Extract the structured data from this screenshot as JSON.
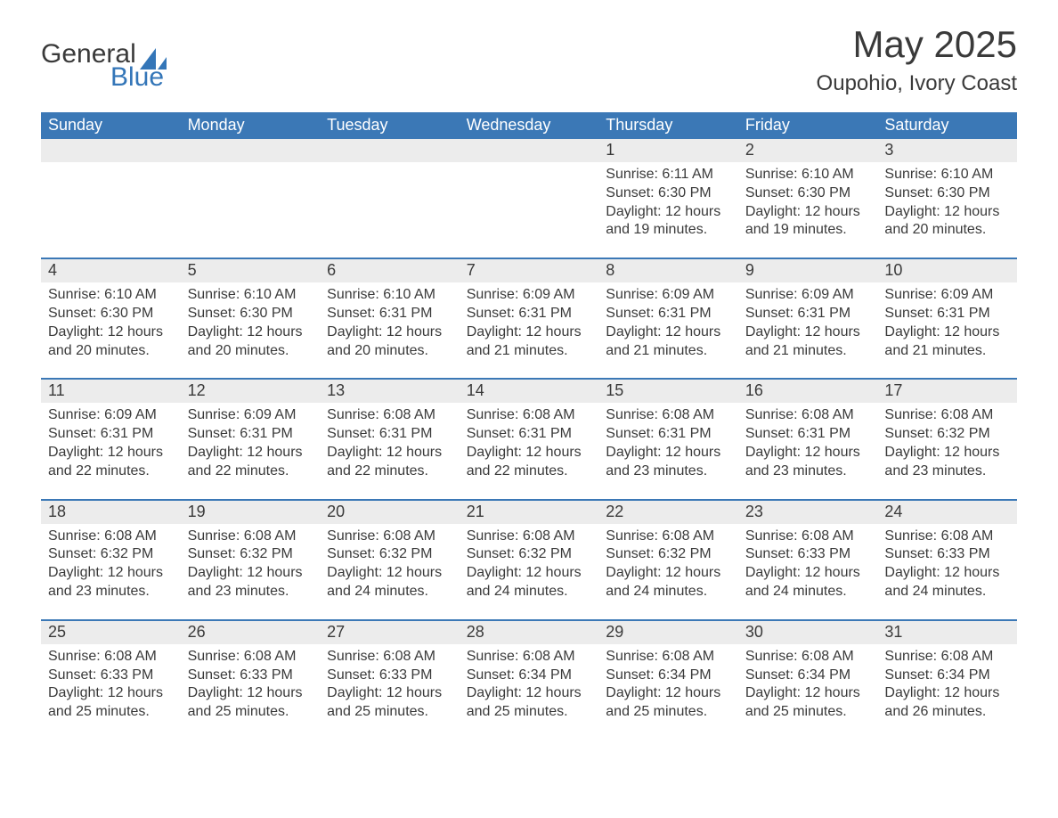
{
  "logo": {
    "word1": "General",
    "word2": "Blue",
    "brand_color": "#3476b8"
  },
  "title": "May 2025",
  "location": "Oupohio, Ivory Coast",
  "header_bg": "#3b78b6",
  "daynum_bg": "#ececec",
  "text_color": "#3a3a3a",
  "day_names": [
    "Sunday",
    "Monday",
    "Tuesday",
    "Wednesday",
    "Thursday",
    "Friday",
    "Saturday"
  ],
  "weeks": [
    [
      {
        "n": "",
        "sr": "",
        "ss": "",
        "dl": ""
      },
      {
        "n": "",
        "sr": "",
        "ss": "",
        "dl": ""
      },
      {
        "n": "",
        "sr": "",
        "ss": "",
        "dl": ""
      },
      {
        "n": "",
        "sr": "",
        "ss": "",
        "dl": ""
      },
      {
        "n": "1",
        "sr": "6:11 AM",
        "ss": "6:30 PM",
        "dl": "12 hours and 19 minutes."
      },
      {
        "n": "2",
        "sr": "6:10 AM",
        "ss": "6:30 PM",
        "dl": "12 hours and 19 minutes."
      },
      {
        "n": "3",
        "sr": "6:10 AM",
        "ss": "6:30 PM",
        "dl": "12 hours and 20 minutes."
      }
    ],
    [
      {
        "n": "4",
        "sr": "6:10 AM",
        "ss": "6:30 PM",
        "dl": "12 hours and 20 minutes."
      },
      {
        "n": "5",
        "sr": "6:10 AM",
        "ss": "6:30 PM",
        "dl": "12 hours and 20 minutes."
      },
      {
        "n": "6",
        "sr": "6:10 AM",
        "ss": "6:31 PM",
        "dl": "12 hours and 20 minutes."
      },
      {
        "n": "7",
        "sr": "6:09 AM",
        "ss": "6:31 PM",
        "dl": "12 hours and 21 minutes."
      },
      {
        "n": "8",
        "sr": "6:09 AM",
        "ss": "6:31 PM",
        "dl": "12 hours and 21 minutes."
      },
      {
        "n": "9",
        "sr": "6:09 AM",
        "ss": "6:31 PM",
        "dl": "12 hours and 21 minutes."
      },
      {
        "n": "10",
        "sr": "6:09 AM",
        "ss": "6:31 PM",
        "dl": "12 hours and 21 minutes."
      }
    ],
    [
      {
        "n": "11",
        "sr": "6:09 AM",
        "ss": "6:31 PM",
        "dl": "12 hours and 22 minutes."
      },
      {
        "n": "12",
        "sr": "6:09 AM",
        "ss": "6:31 PM",
        "dl": "12 hours and 22 minutes."
      },
      {
        "n": "13",
        "sr": "6:08 AM",
        "ss": "6:31 PM",
        "dl": "12 hours and 22 minutes."
      },
      {
        "n": "14",
        "sr": "6:08 AM",
        "ss": "6:31 PM",
        "dl": "12 hours and 22 minutes."
      },
      {
        "n": "15",
        "sr": "6:08 AM",
        "ss": "6:31 PM",
        "dl": "12 hours and 23 minutes."
      },
      {
        "n": "16",
        "sr": "6:08 AM",
        "ss": "6:31 PM",
        "dl": "12 hours and 23 minutes."
      },
      {
        "n": "17",
        "sr": "6:08 AM",
        "ss": "6:32 PM",
        "dl": "12 hours and 23 minutes."
      }
    ],
    [
      {
        "n": "18",
        "sr": "6:08 AM",
        "ss": "6:32 PM",
        "dl": "12 hours and 23 minutes."
      },
      {
        "n": "19",
        "sr": "6:08 AM",
        "ss": "6:32 PM",
        "dl": "12 hours and 23 minutes."
      },
      {
        "n": "20",
        "sr": "6:08 AM",
        "ss": "6:32 PM",
        "dl": "12 hours and 24 minutes."
      },
      {
        "n": "21",
        "sr": "6:08 AM",
        "ss": "6:32 PM",
        "dl": "12 hours and 24 minutes."
      },
      {
        "n": "22",
        "sr": "6:08 AM",
        "ss": "6:32 PM",
        "dl": "12 hours and 24 minutes."
      },
      {
        "n": "23",
        "sr": "6:08 AM",
        "ss": "6:33 PM",
        "dl": "12 hours and 24 minutes."
      },
      {
        "n": "24",
        "sr": "6:08 AM",
        "ss": "6:33 PM",
        "dl": "12 hours and 24 minutes."
      }
    ],
    [
      {
        "n": "25",
        "sr": "6:08 AM",
        "ss": "6:33 PM",
        "dl": "12 hours and 25 minutes."
      },
      {
        "n": "26",
        "sr": "6:08 AM",
        "ss": "6:33 PM",
        "dl": "12 hours and 25 minutes."
      },
      {
        "n": "27",
        "sr": "6:08 AM",
        "ss": "6:33 PM",
        "dl": "12 hours and 25 minutes."
      },
      {
        "n": "28",
        "sr": "6:08 AM",
        "ss": "6:34 PM",
        "dl": "12 hours and 25 minutes."
      },
      {
        "n": "29",
        "sr": "6:08 AM",
        "ss": "6:34 PM",
        "dl": "12 hours and 25 minutes."
      },
      {
        "n": "30",
        "sr": "6:08 AM",
        "ss": "6:34 PM",
        "dl": "12 hours and 25 minutes."
      },
      {
        "n": "31",
        "sr": "6:08 AM",
        "ss": "6:34 PM",
        "dl": "12 hours and 26 minutes."
      }
    ]
  ],
  "labels": {
    "sunrise": "Sunrise:",
    "sunset": "Sunset:",
    "daylight": "Daylight:"
  }
}
